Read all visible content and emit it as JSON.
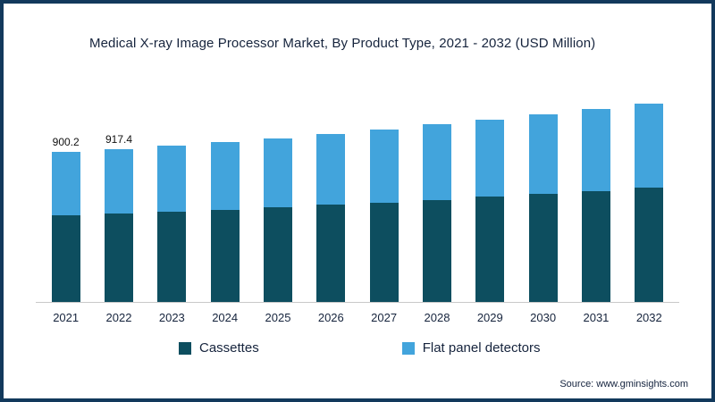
{
  "title": "Medical X-ray Image Processor Market, By Product Type, 2021 - 2032 (USD Million)",
  "source": "Source: www.gminsights.com",
  "colors": {
    "frame_border": "#12395c",
    "background": "#ffffff",
    "cassettes": "#0d4e5f",
    "flat_panel": "#42a4dc",
    "axis_line": "#c9c9c9",
    "text": "#16243d"
  },
  "legend": [
    {
      "label": "Cassettes",
      "color": "#0d4e5f"
    },
    {
      "label": "Flat panel detectors",
      "color": "#42a4dc"
    }
  ],
  "chart_data": {
    "type": "bar",
    "stacked": true,
    "title": "Medical X-ray Image Processor Market, By Product Type, 2021 - 2032 (USD Million)",
    "xlabel": "",
    "ylabel": "USD Million",
    "ylim": [
      0,
      1260
    ],
    "grid": false,
    "legend_position": "bottom",
    "categories": [
      "2021",
      "2022",
      "2023",
      "2024",
      "2025",
      "2026",
      "2027",
      "2028",
      "2029",
      "2030",
      "2031",
      "2032"
    ],
    "series": [
      {
        "name": "Cassettes",
        "color": "#0d4e5f",
        "values": [
          522,
          532,
          543,
          555,
          568,
          583,
          598,
          614,
          631,
          648,
          666,
          685
        ]
      },
      {
        "name": "Flat panel detectors",
        "color": "#42a4dc",
        "values": [
          378.2,
          385.4,
          395,
          403,
          414,
          425,
          438,
          451,
          465,
          478,
          492,
          505
        ]
      }
    ],
    "totals": [
      900.2,
      917.4,
      938,
      958,
      982,
      1008,
      1036,
      1065,
      1096,
      1126,
      1158,
      1190
    ],
    "point_labels": [
      "900.2",
      "917.4",
      "",
      "",
      "",
      "",
      "",
      "",
      "",
      "",
      "",
      ""
    ]
  }
}
